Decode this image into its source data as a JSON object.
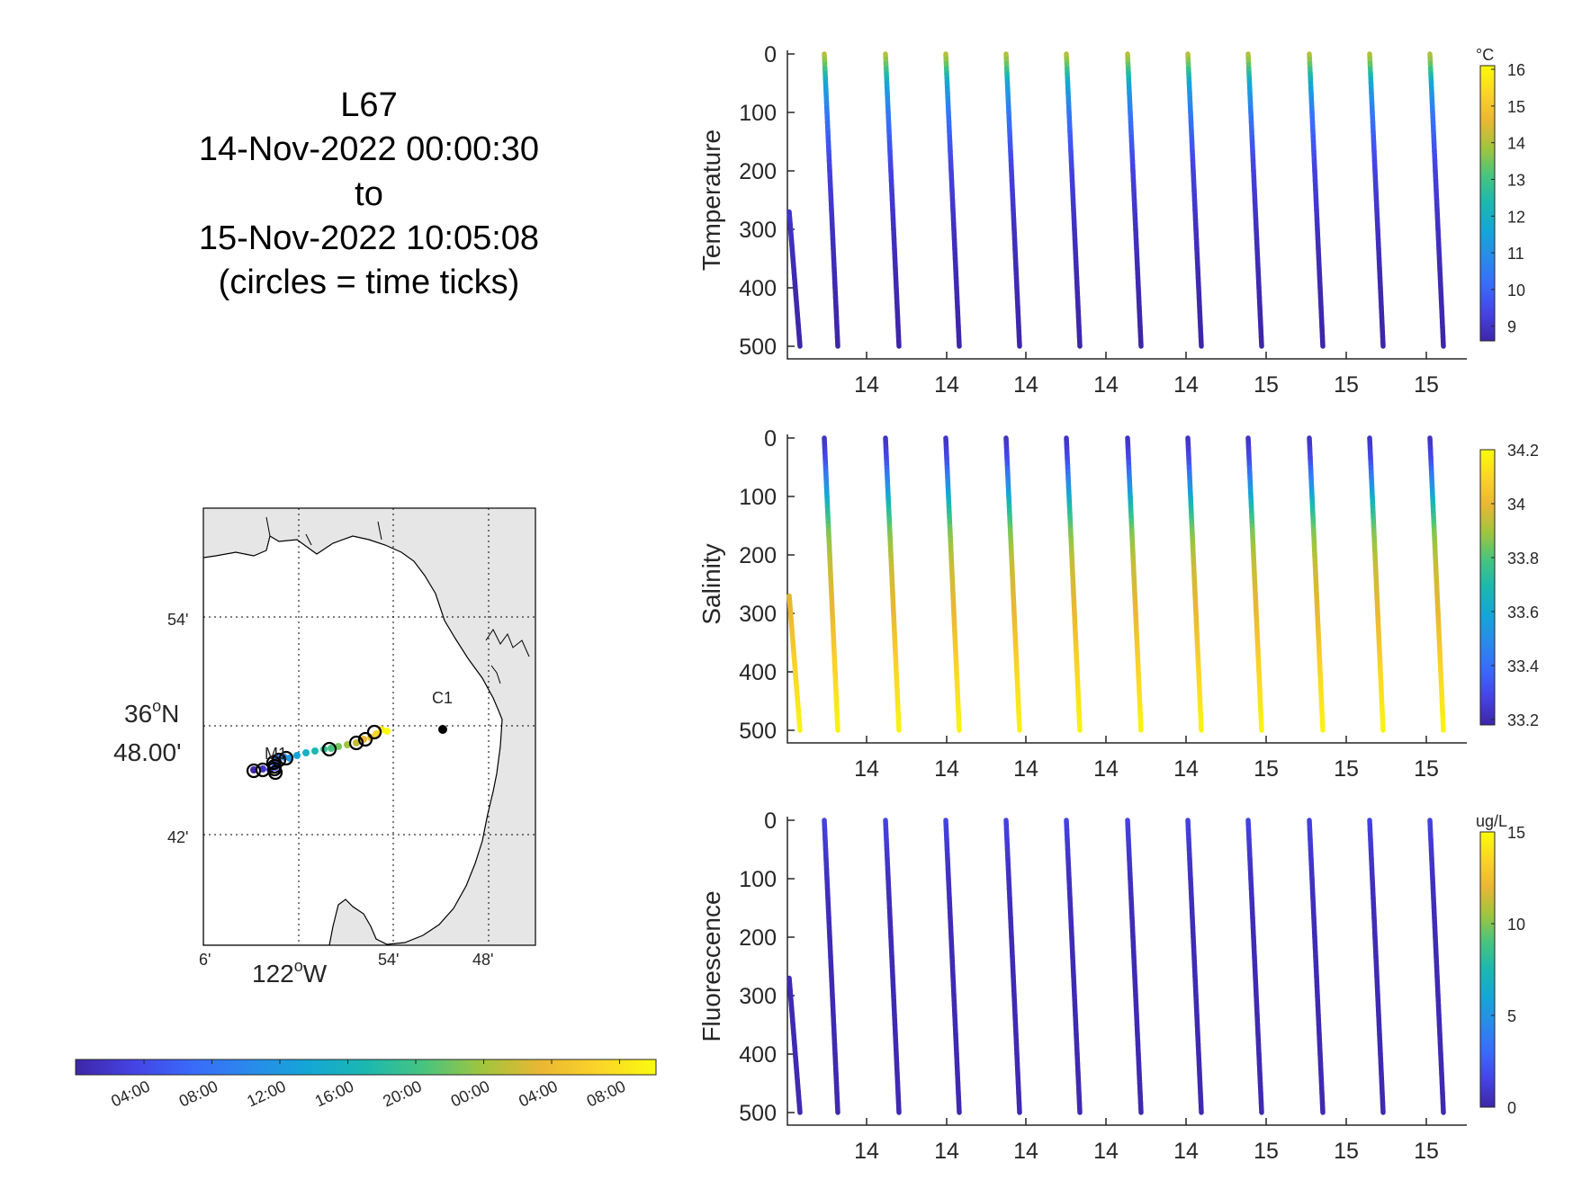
{
  "title": {
    "lines": [
      "L67",
      "14-Nov-2022 00:00:30",
      "to",
      "15-Nov-2022 10:05:08",
      "(circles = time ticks)"
    ]
  },
  "time_colorbar": {
    "tick_labels": [
      "04:00",
      "08:00",
      "12:00",
      "16:00",
      "20:00",
      "00:00",
      "04:00",
      "08:00"
    ]
  },
  "map": {
    "lat_labels": [
      "54'",
      "36",
      "o",
      "N",
      "48.00'",
      "42'"
    ],
    "lon_labels": [
      "6'",
      "122",
      "o",
      "W",
      "54'",
      "48'"
    ],
    "stations": [
      "C1",
      "M1"
    ],
    "land_color": "#e6e6e6",
    "ocean_color": "#ffffff"
  },
  "chart_data": [
    {
      "type": "scatter",
      "ylabel": "Temperature",
      "yticks": [
        "0",
        "100",
        "200",
        "300",
        "400",
        "500"
      ],
      "ylim": [
        0,
        500
      ],
      "y_reversed": true,
      "xticks": [
        "14",
        "14",
        "14",
        "14",
        "14",
        "15",
        "15",
        "15"
      ],
      "colorbar": {
        "unit": "°C",
        "ticks": [
          "16",
          "15",
          "14",
          "13",
          "12",
          "11",
          "10",
          "9"
        ],
        "range": [
          8.6,
          16.1
        ],
        "colormap": "parula"
      },
      "profile_count": 12,
      "profile_depth_range": [
        0,
        500
      ],
      "color_profile": [
        [
          0,
          14.2
        ],
        [
          20,
          13.4
        ],
        [
          50,
          11.8
        ],
        [
          100,
          10.5
        ],
        [
          150,
          9.8
        ],
        [
          200,
          9.3
        ],
        [
          300,
          8.9
        ],
        [
          400,
          8.7
        ],
        [
          500,
          8.6
        ]
      ]
    },
    {
      "type": "scatter",
      "ylabel": "Salinity",
      "yticks": [
        "0",
        "100",
        "200",
        "300",
        "400",
        "500"
      ],
      "ylim": [
        0,
        500
      ],
      "y_reversed": true,
      "xticks": [
        "14",
        "14",
        "14",
        "14",
        "14",
        "15",
        "15",
        "15"
      ],
      "colorbar": {
        "unit": "",
        "ticks": [
          "34.2",
          "34",
          "33.8",
          "33.6",
          "33.4",
          "33.2"
        ],
        "range": [
          33.18,
          34.2
        ],
        "colormap": "parula"
      },
      "profile_count": 12,
      "profile_depth_range": [
        0,
        500
      ],
      "color_profile": [
        [
          0,
          33.22
        ],
        [
          40,
          33.3
        ],
        [
          80,
          33.5
        ],
        [
          120,
          33.7
        ],
        [
          160,
          33.85
        ],
        [
          220,
          33.95
        ],
        [
          300,
          34.0
        ],
        [
          400,
          34.1
        ],
        [
          500,
          34.18
        ]
      ]
    },
    {
      "type": "scatter",
      "ylabel": "Fluorescence",
      "yticks": [
        "0",
        "100",
        "200",
        "300",
        "400",
        "500"
      ],
      "ylim": [
        0,
        500
      ],
      "y_reversed": true,
      "xticks": [
        "14",
        "14",
        "14",
        "14",
        "14",
        "15",
        "15",
        "15"
      ],
      "colorbar": {
        "unit": "ug/L",
        "ticks": [
          "15",
          "10",
          "5",
          "0"
        ],
        "range": [
          0,
          15
        ],
        "colormap": "parula"
      },
      "profile_count": 12,
      "profile_depth_range": [
        0,
        500
      ],
      "color_profile": [
        [
          0,
          1.5
        ],
        [
          50,
          1.0
        ],
        [
          100,
          0.6
        ],
        [
          200,
          0.3
        ],
        [
          500,
          0.2
        ]
      ]
    }
  ]
}
